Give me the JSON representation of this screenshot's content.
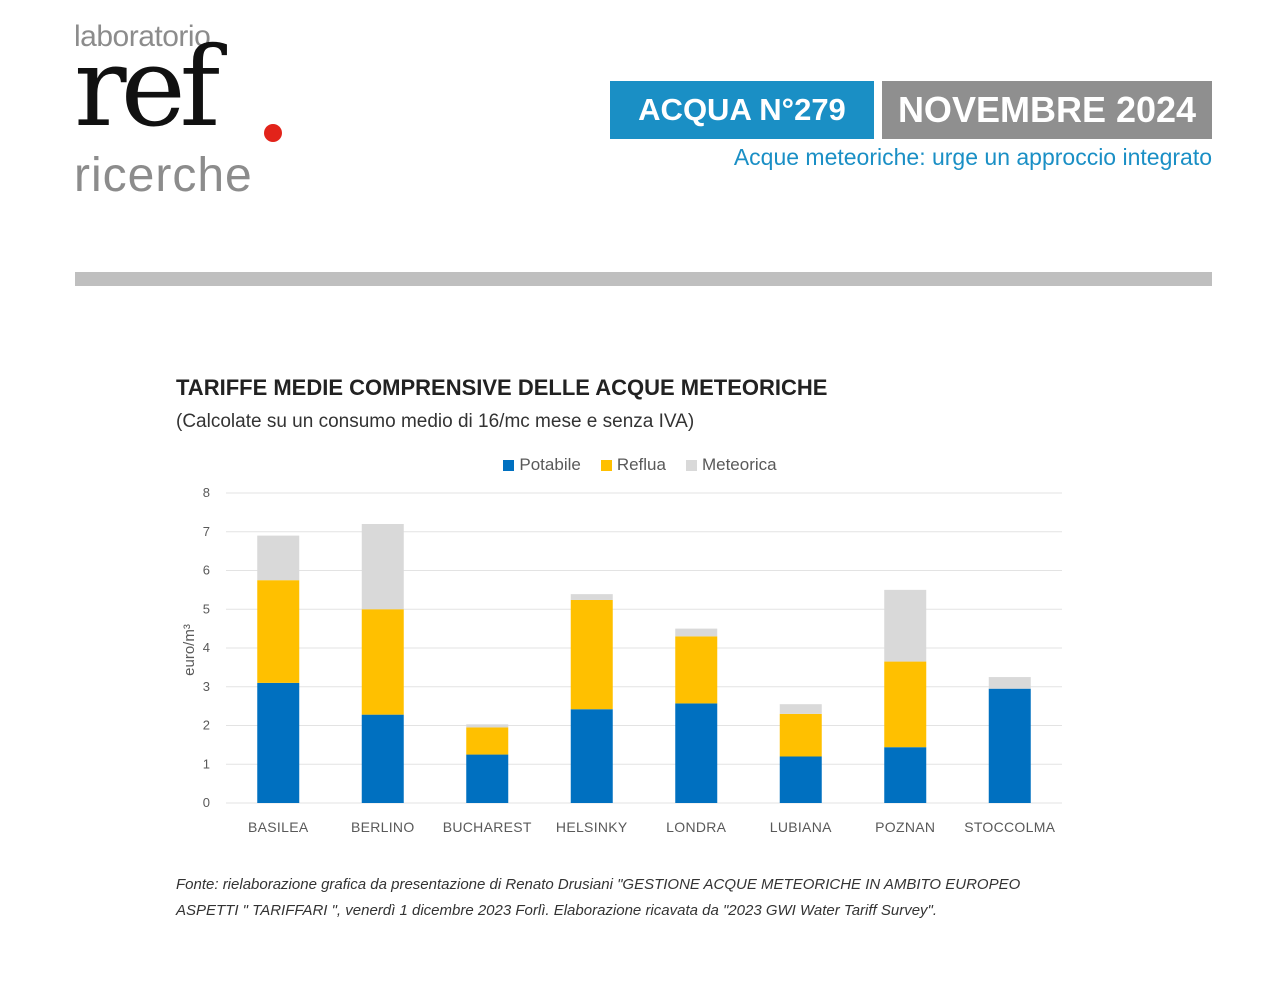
{
  "header": {
    "logo_top": "laboratorio",
    "logo_main": "ref",
    "logo_bottom": "ricerche",
    "issue": "ACQUA N°279",
    "date": "NOVEMBRE 2024",
    "subtitle": "Acque meteoriche: urge un approccio integrato"
  },
  "colors": {
    "brand_blue": "#1a8fc5",
    "brand_grey": "#8f8f8f",
    "logo_dot": "#e2231a"
  },
  "chart_data": {
    "type": "bar",
    "stacked": true,
    "title": "TARIFFE MEDIE COMPRENSIVE DELLE ACQUE METEORICHE",
    "subtitle": "(Calcolate su un consumo medio di 16/mc mese e senza IVA)",
    "ylabel": "euro/m³",
    "xlabel": "",
    "ylim": [
      0,
      8
    ],
    "yticks": [
      0,
      1,
      2,
      3,
      4,
      5,
      6,
      7,
      8
    ],
    "grid": true,
    "legend_position": "top",
    "categories": [
      "BASILEA",
      "BERLINO",
      "BUCHAREST",
      "HELSINKY",
      "LONDRA",
      "LUBIANA",
      "POZNAN",
      "STOCCOLMA"
    ],
    "series": [
      {
        "name": "Potabile",
        "color": "#0070c0",
        "values": [
          3.1,
          2.28,
          1.25,
          2.42,
          2.57,
          1.2,
          1.44,
          2.95
        ]
      },
      {
        "name": "Reflua",
        "color": "#ffc000",
        "values": [
          2.65,
          2.72,
          0.7,
          2.82,
          1.73,
          1.1,
          2.21,
          0
        ]
      },
      {
        "name": "Meteorica",
        "color": "#d9d9d9",
        "values": [
          1.15,
          2.2,
          0.08,
          0.15,
          0.2,
          0.25,
          1.85,
          0.3
        ]
      }
    ]
  },
  "source_text": "Fonte: rielaborazione grafica da presentazione di Renato Drusiani \"GESTIONE ACQUE METEORICHE IN AMBITO EUROPEO ASPETTI  \" TARIFFARI \", venerdì 1 dicembre 2023 Forlì. Elaborazione ricavata da \"2023 GWI Water Tariff Survey\"."
}
